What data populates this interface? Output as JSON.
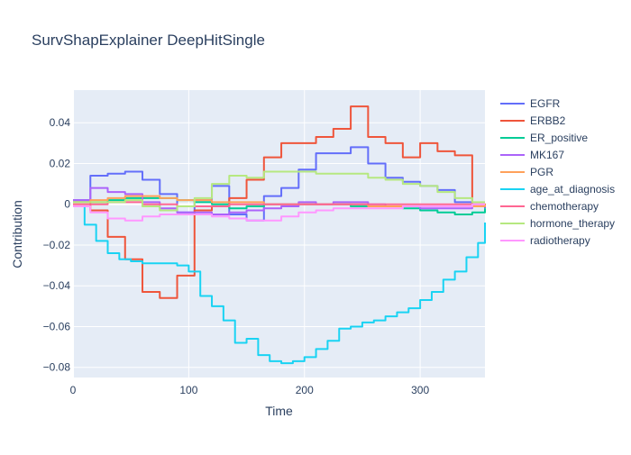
{
  "chart_data": {
    "type": "line",
    "line_shape": "step",
    "title": "SurvShapExplainer DeepHitSingle",
    "xlabel": "Time",
    "ylabel": "Contribution",
    "xlim": [
      0,
      356
    ],
    "ylim": [
      -0.085,
      0.056
    ],
    "x_ticks": [
      0,
      100,
      200,
      300
    ],
    "x_tick_labels": [
      "0",
      "100",
      "200",
      "300"
    ],
    "y_ticks": [
      -0.08,
      -0.06,
      -0.04,
      -0.02,
      0,
      0.02,
      0.04
    ],
    "y_tick_labels": [
      "−0.08",
      "−0.06",
      "−0.04",
      "−0.02",
      "0",
      "0.02",
      "0.04"
    ],
    "grid": true,
    "legend_position": "right",
    "background": "#e5ecf6",
    "series": [
      {
        "name": "EGFR",
        "color": "#636efa",
        "x": [
          0,
          15,
          30,
          45,
          60,
          75,
          90,
          105,
          120,
          135,
          150,
          165,
          180,
          195,
          210,
          225,
          240,
          255,
          270,
          285,
          300,
          315,
          330,
          345,
          356
        ],
        "y": [
          0.002,
          0.014,
          0.015,
          0.016,
          0.012,
          0.005,
          -0.004,
          0.002,
          0.009,
          -0.005,
          -0.008,
          0.004,
          0.008,
          0.017,
          0.025,
          0.025,
          0.028,
          0.02,
          0.013,
          0.011,
          0.009,
          0.007,
          0.001,
          -0.001,
          -0.002
        ]
      },
      {
        "name": "ERBB2",
        "color": "#ef553b",
        "x": [
          0,
          15,
          30,
          45,
          60,
          75,
          90,
          105,
          120,
          135,
          150,
          165,
          180,
          195,
          210,
          225,
          240,
          255,
          270,
          285,
          300,
          315,
          330,
          345,
          356
        ],
        "y": [
          0.001,
          -0.003,
          -0.016,
          -0.027,
          -0.043,
          -0.046,
          -0.035,
          -0.003,
          -0.001,
          0.003,
          0.012,
          0.023,
          0.03,
          0.03,
          0.033,
          0.037,
          0.048,
          0.033,
          0.03,
          0.023,
          0.03,
          0.026,
          0.024,
          0.0,
          -0.001
        ]
      },
      {
        "name": "ER_positive",
        "color": "#00cc96",
        "x": [
          0,
          15,
          30,
          45,
          60,
          75,
          90,
          105,
          120,
          135,
          150,
          165,
          180,
          195,
          210,
          225,
          240,
          255,
          270,
          285,
          300,
          315,
          330,
          345,
          356
        ],
        "y": [
          0.001,
          0.001,
          0.002,
          0.003,
          0.003,
          0.003,
          0.002,
          0.001,
          0.0,
          -0.002,
          -0.001,
          0.0,
          0.0,
          0.0,
          0.0,
          0.0,
          -0.001,
          -0.001,
          -0.001,
          -0.002,
          -0.003,
          -0.004,
          -0.005,
          -0.004,
          -0.002
        ]
      },
      {
        "name": "MK167",
        "color": "#ab63fa",
        "x": [
          0,
          15,
          30,
          45,
          60,
          75,
          90,
          105,
          120,
          135,
          150,
          165,
          180,
          195,
          210,
          225,
          240,
          255,
          270,
          285,
          300,
          315,
          330,
          345,
          356
        ],
        "y": [
          0.002,
          0.008,
          0.006,
          0.005,
          0.001,
          -0.002,
          -0.004,
          -0.004,
          -0.005,
          -0.004,
          -0.003,
          -0.002,
          -0.001,
          0.001,
          0.0,
          0.001,
          0.001,
          0.0,
          -0.001,
          -0.001,
          -0.002,
          -0.002,
          -0.002,
          -0.001,
          -0.001
        ]
      },
      {
        "name": "PGR",
        "color": "#ffa15a",
        "x": [
          0,
          15,
          30,
          45,
          60,
          75,
          90,
          105,
          120,
          135,
          150,
          165,
          180,
          195,
          210,
          225,
          240,
          255,
          270,
          285,
          300,
          315,
          330,
          345,
          356
        ],
        "y": [
          0.001,
          0.002,
          0.003,
          0.004,
          0.004,
          0.003,
          0.002,
          0.002,
          0.001,
          0.001,
          0.001,
          0.0,
          0.0,
          0.0,
          0.0,
          0.0,
          0.0,
          -0.001,
          -0.001,
          -0.001,
          -0.001,
          -0.001,
          -0.001,
          -0.001,
          0.0
        ]
      },
      {
        "name": "age_at_diagnosis",
        "color": "#19d3f3",
        "x": [
          0,
          10,
          20,
          30,
          40,
          50,
          60,
          75,
          90,
          100,
          110,
          120,
          130,
          140,
          150,
          160,
          170,
          180,
          190,
          200,
          210,
          220,
          230,
          240,
          250,
          260,
          270,
          280,
          290,
          300,
          310,
          320,
          330,
          340,
          350,
          356
        ],
        "y": [
          -0.001,
          -0.01,
          -0.018,
          -0.024,
          -0.027,
          -0.028,
          -0.029,
          -0.029,
          -0.03,
          -0.033,
          -0.045,
          -0.05,
          -0.057,
          -0.068,
          -0.066,
          -0.074,
          -0.077,
          -0.078,
          -0.077,
          -0.075,
          -0.071,
          -0.067,
          -0.061,
          -0.06,
          -0.058,
          -0.057,
          -0.055,
          -0.053,
          -0.051,
          -0.047,
          -0.043,
          -0.037,
          -0.033,
          -0.026,
          -0.019,
          -0.009
        ]
      },
      {
        "name": "chemotherapy",
        "color": "#ff6692",
        "x": [
          0,
          15,
          30,
          45,
          60,
          75,
          90,
          105,
          120,
          135,
          150,
          165,
          180,
          195,
          210,
          225,
          240,
          255,
          270,
          285,
          300,
          315,
          330,
          345,
          356
        ],
        "y": [
          0.0,
          0.0,
          0.001,
          0.001,
          0.0,
          0.0,
          -0.001,
          -0.001,
          -0.001,
          0.0,
          0.0,
          0.0,
          0.0,
          0.0,
          0.0,
          0.0,
          0.0,
          0.0,
          0.0,
          0.0,
          0.0,
          0.0,
          0.0,
          0.0,
          0.0
        ]
      },
      {
        "name": "hormone_therapy",
        "color": "#b6e880",
        "x": [
          0,
          15,
          30,
          45,
          60,
          75,
          90,
          105,
          120,
          135,
          150,
          165,
          180,
          195,
          210,
          225,
          240,
          255,
          270,
          285,
          300,
          315,
          330,
          345,
          356
        ],
        "y": [
          0.001,
          0.001,
          0.001,
          0.002,
          -0.001,
          -0.003,
          -0.001,
          0.003,
          0.01,
          0.014,
          0.013,
          0.016,
          0.016,
          0.016,
          0.015,
          0.015,
          0.015,
          0.013,
          0.012,
          0.01,
          0.009,
          0.006,
          0.003,
          0.001,
          0.001
        ]
      },
      {
        "name": "radiotherapy",
        "color": "#ff97ff",
        "x": [
          0,
          15,
          30,
          45,
          60,
          75,
          90,
          105,
          120,
          135,
          150,
          165,
          180,
          195,
          210,
          225,
          240,
          255,
          270,
          285,
          300,
          315,
          330,
          345,
          356
        ],
        "y": [
          -0.001,
          -0.004,
          -0.007,
          -0.008,
          -0.006,
          -0.005,
          -0.005,
          -0.005,
          -0.006,
          -0.007,
          -0.008,
          -0.008,
          -0.006,
          -0.004,
          -0.003,
          -0.002,
          -0.002,
          -0.002,
          -0.002,
          -0.001,
          -0.001,
          -0.001,
          -0.001,
          0.0,
          0.0
        ]
      }
    ]
  }
}
